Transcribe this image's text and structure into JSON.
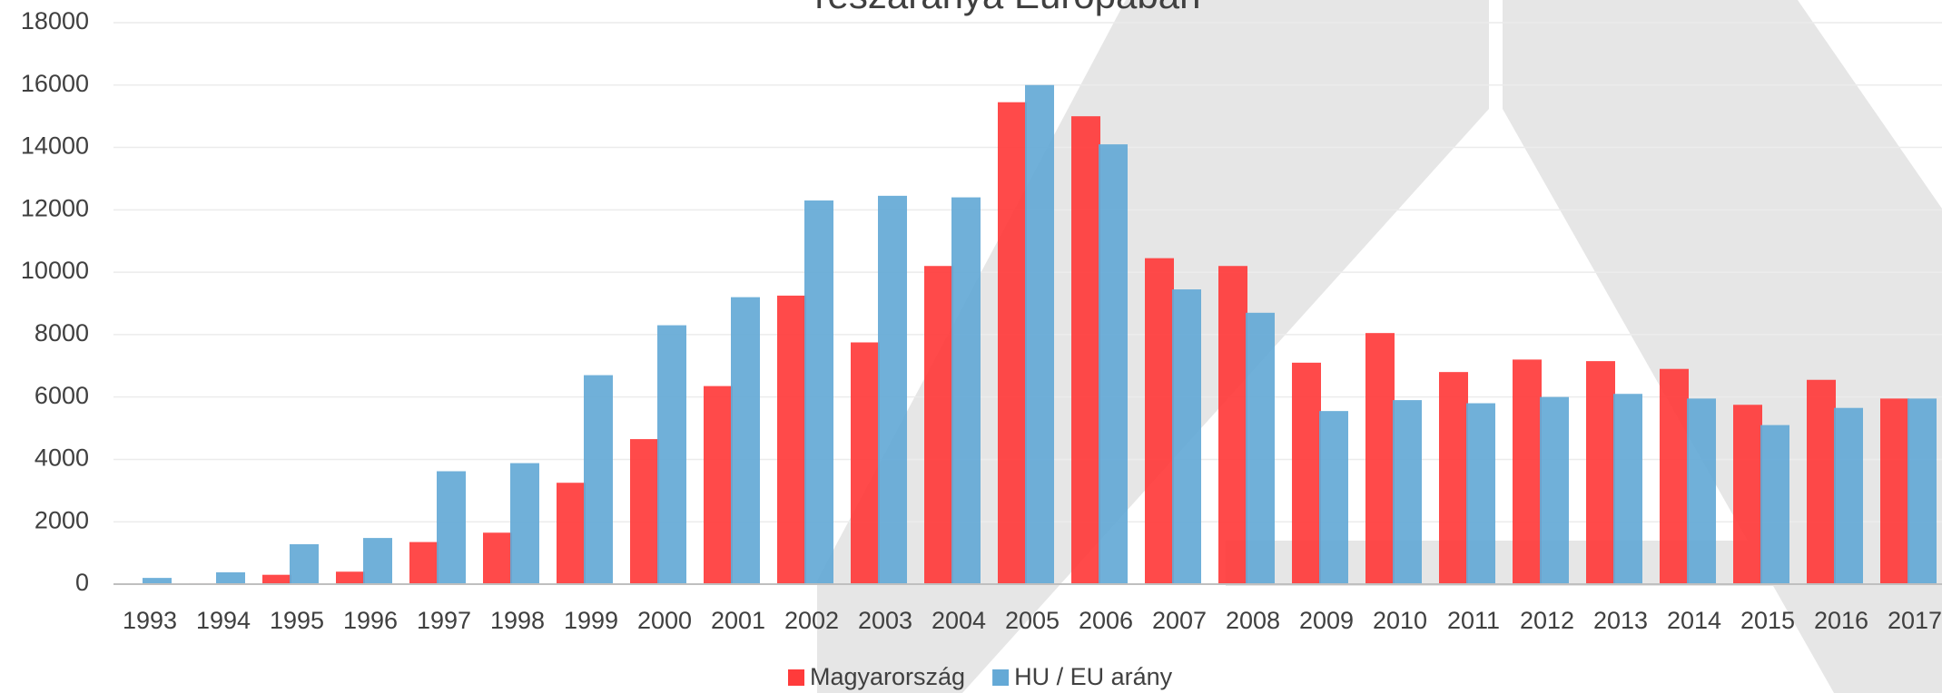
{
  "chart_data": {
    "type": "bar",
    "title": "részaránya Európában",
    "categories": [
      "1993",
      "1994",
      "1995",
      "1996",
      "1997",
      "1998",
      "1999",
      "2000",
      "2001",
      "2002",
      "2003",
      "2004",
      "2005",
      "2006",
      "2007",
      "2008",
      "2009",
      "2010",
      "2011",
      "2012",
      "2013",
      "2014",
      "2015",
      "2016",
      "2017"
    ],
    "series": [
      {
        "name": "Magyarország",
        "color": "#ff3b3b",
        "values": [
          10,
          30,
          300,
          400,
          1350,
          1650,
          3250,
          4650,
          6350,
          9250,
          7750,
          10200,
          15450,
          15000,
          10450,
          10200,
          7100,
          8050,
          6800,
          7200,
          7150,
          6900,
          5750,
          6550,
          5950
        ]
      },
      {
        "name": "HU / EU arány",
        "color": "#64a9d6",
        "values": [
          200,
          380,
          1280,
          1480,
          3620,
          3880,
          6700,
          8300,
          9200,
          12300,
          12450,
          12400,
          16000,
          14100,
          9450,
          8700,
          5550,
          5900,
          5800,
          6000,
          6100,
          5950,
          5100,
          5650,
          5950
        ]
      }
    ],
    "ylim": [
      0,
      18000
    ],
    "yticks": [
      0,
      2000,
      4000,
      6000,
      8000,
      10000,
      12000,
      14000,
      16000,
      18000
    ],
    "grid": true,
    "legend": "bottom"
  }
}
